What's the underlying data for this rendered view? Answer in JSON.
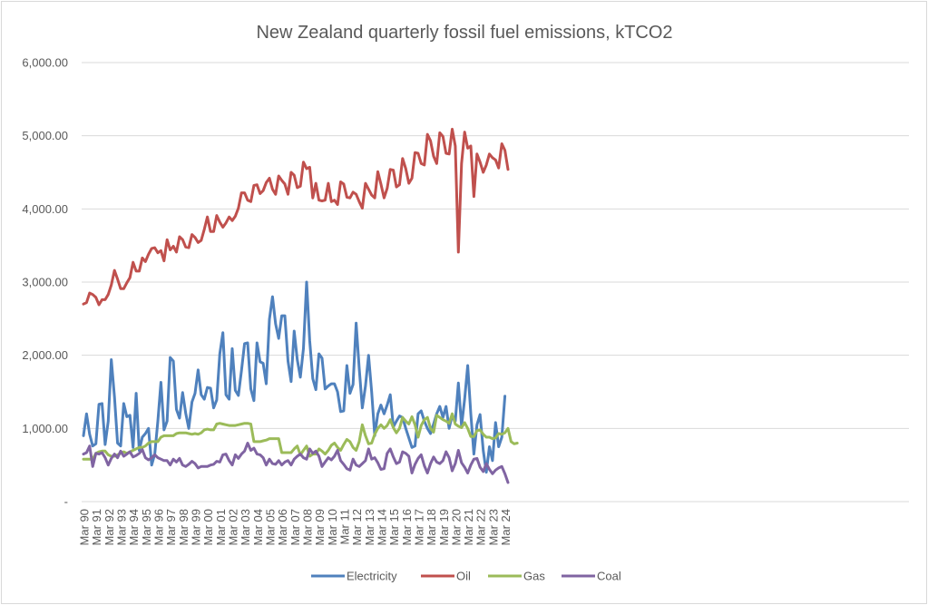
{
  "chart_data": {
    "type": "line",
    "title": "New Zealand quarterly fossil fuel emissions, kTCO2",
    "xlabel": "",
    "ylabel": "",
    "ylim": [
      0,
      6000
    ],
    "yticks": [
      0,
      1000,
      2000,
      3000,
      4000,
      5000,
      6000
    ],
    "ytick_labels": [
      "-",
      "1,000.00",
      "2,000.00",
      "3,000.00",
      "4,000.00",
      "5,000.00",
      "6,000.00"
    ],
    "grid": true,
    "legend_position": "bottom",
    "x_tick_labels": [
      "Mar 90",
      "Mar 91",
      "Mar 92",
      "Mar 93",
      "Mar 94",
      "Mar 95",
      "Mar 96",
      "Mar 97",
      "Mar 98",
      "Mar 99",
      "Mar 00",
      "Mar 01",
      "Mar 02",
      "Mar 03",
      "Mar 04",
      "Mar 05",
      "Mar 06",
      "Mar 07",
      "Mar 08",
      "Mar 09",
      "Mar 10",
      "Mar 11",
      "Mar 12",
      "Mar 13",
      "Mar 14",
      "Mar 15",
      "Mar 16",
      "Mar 17",
      "Mar 18",
      "Mar 19",
      "Mar 20",
      "Mar 21",
      "Mar 22",
      "Mar 23",
      "Mar 24"
    ],
    "x_start": "Mar 90",
    "x_frequency": "quarterly",
    "series": [
      {
        "name": "Electricity",
        "color": "#4f81bd",
        "values": [
          900,
          1200,
          920,
          760,
          790,
          1330,
          1340,
          780,
          1100,
          1940,
          1430,
          800,
          760,
          1340,
          1160,
          1180,
          740,
          1480,
          700,
          880,
          930,
          1000,
          500,
          650,
          1100,
          1630,
          980,
          1100,
          1970,
          1920,
          1260,
          1140,
          1490,
          1210,
          1000,
          1360,
          1480,
          1800,
          1460,
          1400,
          1560,
          1550,
          1280,
          1390,
          2020,
          2310,
          1460,
          1400,
          2090,
          1520,
          1450,
          1790,
          2160,
          2170,
          1540,
          1380,
          2170,
          1910,
          1890,
          1610,
          2490,
          2800,
          2430,
          2230,
          2540,
          2540,
          1920,
          1640,
          2330,
          1940,
          1700,
          2090,
          3000,
          2200,
          1680,
          1530,
          2020,
          1960,
          1540,
          1580,
          1610,
          1610,
          1500,
          1230,
          1240,
          1860,
          1480,
          1600,
          2440,
          1820,
          1280,
          1580,
          2000,
          1500,
          900,
          1200,
          1320,
          1200,
          1320,
          1460,
          1020,
          1100,
          1170,
          1150,
          1000,
          870,
          740,
          760,
          1200,
          1240,
          1100,
          1000,
          930,
          1060,
          1200,
          1300,
          1150,
          1300,
          1000,
          1180,
          1100,
          1620,
          1030,
          1400,
          1860,
          1200,
          650,
          1050,
          1190,
          700,
          400,
          750,
          560,
          1080,
          750,
          880,
          1440
        ]
      },
      {
        "name": "Oil",
        "color": "#c0504d",
        "values": [
          2700,
          2720,
          2850,
          2830,
          2790,
          2690,
          2760,
          2760,
          2830,
          2960,
          3160,
          3040,
          2910,
          2910,
          2990,
          3060,
          3270,
          3150,
          3150,
          3330,
          3280,
          3380,
          3460,
          3470,
          3400,
          3430,
          3290,
          3580,
          3440,
          3490,
          3410,
          3620,
          3580,
          3480,
          3470,
          3650,
          3610,
          3540,
          3570,
          3720,
          3890,
          3690,
          3690,
          3910,
          3820,
          3750,
          3810,
          3890,
          3840,
          3900,
          4010,
          4220,
          4220,
          4120,
          4100,
          4320,
          4330,
          4210,
          4250,
          4360,
          4420,
          4270,
          4200,
          4450,
          4390,
          4340,
          4200,
          4500,
          4460,
          4290,
          4310,
          4640,
          4550,
          4570,
          4150,
          4350,
          4120,
          4110,
          4120,
          4350,
          4100,
          4120,
          4060,
          4370,
          4340,
          4160,
          4150,
          4230,
          4200,
          4100,
          4010,
          4350,
          4270,
          4190,
          4150,
          4510,
          4340,
          4150,
          4280,
          4540,
          4530,
          4300,
          4330,
          4690,
          4550,
          4350,
          4420,
          4770,
          4760,
          4620,
          4600,
          5020,
          4930,
          4720,
          4620,
          5040,
          4990,
          4760,
          4750,
          5090,
          4860,
          3410,
          4620,
          5050,
          4830,
          4860,
          4170,
          4750,
          4640,
          4500,
          4600,
          4750,
          4700,
          4670,
          4560,
          4890,
          4800,
          4540
        ]
      },
      {
        "name": "Gas",
        "color": "#9bbb59",
        "values": [
          580,
          580,
          580,
          580,
          660,
          680,
          690,
          690,
          640,
          620,
          620,
          640,
          660,
          680,
          660,
          680,
          700,
          720,
          740,
          740,
          760,
          800,
          820,
          820,
          820,
          880,
          900,
          900,
          900,
          900,
          930,
          940,
          940,
          940,
          930,
          920,
          930,
          920,
          940,
          980,
          990,
          980,
          980,
          1060,
          1070,
          1060,
          1050,
          1040,
          1040,
          1040,
          1050,
          1060,
          1070,
          1070,
          1060,
          820,
          820,
          820,
          830,
          840,
          860,
          860,
          860,
          860,
          670,
          670,
          670,
          670,
          720,
          760,
          640,
          700,
          760,
          620,
          650,
          650,
          720,
          690,
          650,
          700,
          770,
          800,
          740,
          700,
          780,
          850,
          820,
          740,
          700,
          820,
          1050,
          900,
          790,
          800,
          920,
          1000,
          1050,
          1000,
          1040,
          1120,
          1010,
          940,
          1000,
          1150,
          1100,
          1060,
          1160,
          1050,
          880,
          1040,
          1120,
          1150,
          1000,
          950,
          1180,
          1150,
          1120,
          1100,
          1070,
          1200,
          1060,
          1030,
          1010,
          1080,
          1000,
          890,
          890,
          970,
          980,
          920,
          880,
          880,
          860,
          870,
          930,
          920,
          940,
          1000,
          820,
          790,
          800
        ]
      },
      {
        "name": "Coal",
        "color": "#8064a2",
        "values": [
          650,
          670,
          760,
          480,
          660,
          650,
          670,
          600,
          500,
          590,
          650,
          600,
          690,
          620,
          650,
          680,
          610,
          630,
          660,
          710,
          600,
          570,
          600,
          640,
          600,
          580,
          560,
          560,
          500,
          580,
          540,
          590,
          500,
          480,
          510,
          550,
          520,
          460,
          480,
          480,
          480,
          500,
          510,
          550,
          540,
          640,
          650,
          560,
          500,
          640,
          590,
          650,
          690,
          800,
          700,
          730,
          650,
          640,
          600,
          500,
          580,
          520,
          510,
          560,
          500,
          540,
          560,
          500,
          580,
          620,
          650,
          600,
          580,
          720,
          660,
          690,
          620,
          480,
          540,
          600,
          570,
          620,
          700,
          560,
          510,
          450,
          430,
          580,
          500,
          480,
          520,
          560,
          720,
          580,
          600,
          530,
          440,
          450,
          660,
          720,
          610,
          520,
          540,
          680,
          660,
          620,
          390,
          510,
          590,
          640,
          490,
          390,
          520,
          610,
          540,
          520,
          560,
          680,
          600,
          420,
          520,
          700,
          530,
          470,
          390,
          500,
          580,
          590,
          470,
          410,
          520,
          440,
          380,
          430,
          460,
          480,
          380,
          260
        ]
      }
    ],
    "legend": [
      "Electricity",
      "Oil",
      "Gas",
      "Coal"
    ]
  }
}
